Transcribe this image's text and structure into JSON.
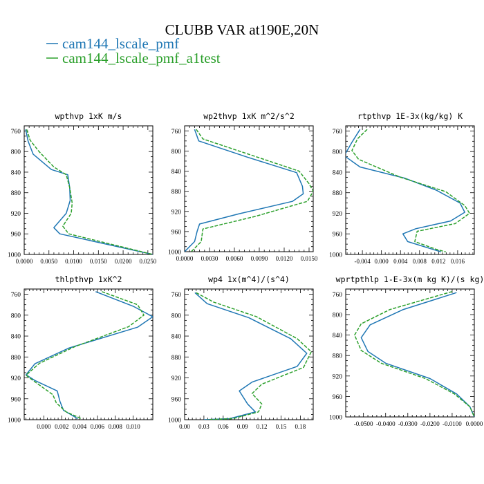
{
  "figure": {
    "title": "CLUBB VAR at190E,20N",
    "legend": [
      {
        "label": "cam144_lscale_pmf",
        "color": "#1f77b4",
        "dash": "solid"
      },
      {
        "label": "cam144_lscale_pmf_a1test",
        "color": "#2ca02c",
        "dash": "dashed"
      }
    ]
  },
  "chart_data": [
    {
      "type": "line",
      "title": "wpthvp  1xK m/s",
      "ylim": [
        1000,
        750
      ],
      "yticks": [
        760,
        800,
        840,
        880,
        920,
        960,
        1000
      ],
      "xlim": [
        0,
        0.026
      ],
      "xticks": [
        0,
        0.005,
        0.01,
        0.015,
        0.02,
        0.025
      ],
      "xtick_labels": [
        "0.0000",
        "0.0050",
        "0.0100",
        "0.0150",
        "0.0200",
        "0.0250"
      ],
      "series": [
        {
          "color": "#1f77b4",
          "dash": "solid",
          "points": [
            [
              0.0003,
              757
            ],
            [
              0.0008,
              780
            ],
            [
              0.0018,
              805
            ],
            [
              0.0055,
              835
            ],
            [
              0.0088,
              845
            ],
            [
              0.0092,
              870
            ],
            [
              0.0093,
              895
            ],
            [
              0.0085,
              920
            ],
            [
              0.006,
              948
            ],
            [
              0.0072,
              960
            ],
            [
              0.026,
              1000
            ]
          ]
        },
        {
          "color": "#2ca02c",
          "dash": "dashed",
          "points": [
            [
              0.0005,
              757
            ],
            [
              0.0012,
              778
            ],
            [
              0.003,
              800
            ],
            [
              0.006,
              830
            ],
            [
              0.0085,
              845
            ],
            [
              0.0092,
              870
            ],
            [
              0.0097,
              900
            ],
            [
              0.0095,
              920
            ],
            [
              0.0078,
              945
            ],
            [
              0.009,
              960
            ],
            [
              0.026,
              1000
            ]
          ]
        }
      ]
    },
    {
      "type": "line",
      "title": "wp2thvp  1xK m^2/s^2",
      "ylim": [
        1000,
        750
      ],
      "yticks": [
        760,
        800,
        840,
        880,
        920,
        960,
        1000
      ],
      "xlim": [
        0,
        0.0155
      ],
      "xticks": [
        0,
        0.003,
        0.006,
        0.009,
        0.012,
        0.015
      ],
      "xtick_labels": [
        "0.0000",
        "0.0030",
        "0.0060",
        "0.0090",
        "0.0120",
        "0.0150"
      ],
      "series": [
        {
          "color": "#1f77b4",
          "dash": "solid",
          "points": [
            [
              0.0012,
              757
            ],
            [
              0.0017,
              780
            ],
            [
              0.0075,
              812
            ],
            [
              0.0135,
              843
            ],
            [
              0.0142,
              870
            ],
            [
              0.0143,
              885
            ],
            [
              0.013,
              900
            ],
            [
              0.0065,
              925
            ],
            [
              0.0018,
              945
            ],
            [
              0.0015,
              960
            ],
            [
              0.0012,
              980
            ],
            [
              0.0,
              1000
            ]
          ]
        },
        {
          "color": "#2ca02c",
          "dash": "dashed",
          "points": [
            [
              0.0014,
              757
            ],
            [
              0.0022,
              776
            ],
            [
              0.008,
              808
            ],
            [
              0.0138,
              840
            ],
            [
              0.015,
              865
            ],
            [
              0.0155,
              880
            ],
            [
              0.0148,
              900
            ],
            [
              0.0085,
              930
            ],
            [
              0.0022,
              955
            ],
            [
              0.002,
              980
            ],
            [
              0.0008,
              1000
            ]
          ]
        }
      ]
    },
    {
      "type": "line",
      "title": "rtpthvp  1E-3x(kg/kg) K",
      "ylim": [
        1000,
        750
      ],
      "yticks": [
        760,
        800,
        840,
        880,
        920,
        960,
        1000
      ],
      "xlim": [
        -0.0075,
        0.0195
      ],
      "xticks": [
        -0.004,
        0.0,
        0.004,
        0.008,
        0.012,
        0.016
      ],
      "xtick_labels": [
        "-0.004",
        "0.000",
        "0.004",
        "0.008",
        "0.012",
        "0.016"
      ],
      "series": [
        {
          "color": "#1f77b4",
          "dash": "solid",
          "points": [
            [
              -0.0045,
              757
            ],
            [
              -0.0062,
              782
            ],
            [
              -0.0078,
              808
            ],
            [
              -0.0045,
              830
            ],
            [
              0.005,
              852
            ],
            [
              0.0115,
              875
            ],
            [
              0.0165,
              900
            ],
            [
              0.0175,
              918
            ],
            [
              0.0145,
              935
            ],
            [
              0.0072,
              950
            ],
            [
              0.0045,
              960
            ],
            [
              0.0055,
              975
            ],
            [
              0.0125,
              995
            ]
          ]
        },
        {
          "color": "#2ca02c",
          "dash": "dashed",
          "points": [
            [
              -0.003,
              757
            ],
            [
              -0.005,
              775
            ],
            [
              -0.0062,
              798
            ],
            [
              -0.0048,
              815
            ],
            [
              0.004,
              850
            ],
            [
              0.0135,
              878
            ],
            [
              0.0175,
              905
            ],
            [
              0.0185,
              920
            ],
            [
              0.0155,
              940
            ],
            [
              0.0075,
              955
            ],
            [
              0.007,
              975
            ],
            [
              0.0115,
              990
            ],
            [
              0.0135,
              995
            ]
          ]
        }
      ]
    },
    {
      "type": "line",
      "title": "thlpthvp  1xK^2",
      "ylim": [
        1000,
        750
      ],
      "yticks": [
        760,
        800,
        840,
        880,
        920,
        960,
        1000
      ],
      "xlim": [
        -0.0022,
        0.0122
      ],
      "xticks": [
        0,
        0.002,
        0.004,
        0.006,
        0.008,
        0.01
      ],
      "xtick_labels": [
        "0.000",
        "0.002",
        "0.004",
        "0.006",
        "0.008",
        "0.010"
      ],
      "series": [
        {
          "color": "#1f77b4",
          "dash": "solid",
          "points": [
            [
              0.0058,
              755
            ],
            [
              0.01,
              783
            ],
            [
              0.0122,
              803
            ],
            [
              0.0105,
              823
            ],
            [
              0.0028,
              863
            ],
            [
              -0.001,
              893
            ],
            [
              -0.002,
              914
            ],
            [
              -0.001,
              925
            ],
            [
              0.0015,
              945
            ],
            [
              0.0018,
              965
            ],
            [
              0.0022,
              982
            ],
            [
              0.0038,
              998
            ]
          ]
        },
        {
          "color": "#2ca02c",
          "dash": "dashed",
          "points": [
            [
              0.0065,
              755
            ],
            [
              0.0105,
              780
            ],
            [
              0.0112,
              800
            ],
            [
              0.0095,
              822
            ],
            [
              0.0035,
              860
            ],
            [
              -0.0005,
              892
            ],
            [
              -0.002,
              915
            ],
            [
              -0.0008,
              930
            ],
            [
              0.001,
              952
            ],
            [
              0.0014,
              968
            ],
            [
              0.0025,
              985
            ],
            [
              0.0042,
              998
            ]
          ]
        }
      ]
    },
    {
      "type": "line",
      "title": "wp4  1x(m^4)/(s^4)",
      "ylim": [
        1000,
        750
      ],
      "yticks": [
        760,
        800,
        840,
        880,
        920,
        960,
        1000
      ],
      "xlim": [
        0,
        0.2
      ],
      "xticks": [
        0,
        0.03,
        0.06,
        0.09,
        0.12,
        0.15,
        0.18
      ],
      "xtick_labels": [
        "0.00",
        "0.03",
        "0.06",
        "0.09",
        "0.12",
        "0.15",
        "0.18"
      ],
      "series": [
        {
          "color": "#1f77b4",
          "dash": "solid",
          "points": [
            [
              0.016,
              757
            ],
            [
              0.035,
              778
            ],
            [
              0.1,
              805
            ],
            [
              0.165,
              845
            ],
            [
              0.19,
              873
            ],
            [
              0.175,
              898
            ],
            [
              0.105,
              928
            ],
            [
              0.085,
              945
            ],
            [
              0.098,
              970
            ],
            [
              0.11,
              985
            ],
            [
              0.07,
              998
            ],
            [
              0.03,
              1000
            ]
          ]
        },
        {
          "color": "#2ca02c",
          "dash": "dashed",
          "points": [
            [
              0.018,
              757
            ],
            [
              0.045,
              775
            ],
            [
              0.112,
              803
            ],
            [
              0.175,
              845
            ],
            [
              0.197,
              870
            ],
            [
              0.185,
              900
            ],
            [
              0.12,
              932
            ],
            [
              0.105,
              950
            ],
            [
              0.12,
              970
            ],
            [
              0.115,
              985
            ],
            [
              0.075,
              998
            ],
            [
              0.035,
              1000
            ]
          ]
        }
      ]
    },
    {
      "type": "line",
      "title": "wprtpthlp  1-E-3x(m kg K)/(s kg)",
      "ylim": [
        1000,
        750
      ],
      "yticks": [
        760,
        800,
        840,
        880,
        920,
        960,
        1000
      ],
      "xlim": [
        -0.058,
        0.0
      ],
      "xticks": [
        -0.05,
        -0.04,
        -0.03,
        -0.02,
        -0.01,
        0.0
      ],
      "xtick_labels": [
        "-0.0500",
        "-0.0400",
        "-0.0300",
        "-0.0200",
        "-0.0100",
        "0.0000"
      ],
      "series": [
        {
          "color": "#1f77b4",
          "dash": "solid",
          "points": [
            [
              -0.008,
              757
            ],
            [
              -0.032,
              790
            ],
            [
              -0.047,
              820
            ],
            [
              -0.051,
              845
            ],
            [
              -0.048,
              872
            ],
            [
              -0.04,
              895
            ],
            [
              -0.02,
              925
            ],
            [
              -0.008,
              955
            ],
            [
              -0.002,
              980
            ],
            [
              0.0,
              1000
            ]
          ]
        },
        {
          "color": "#2ca02c",
          "dash": "dashed",
          "points": [
            [
              -0.01,
              755
            ],
            [
              -0.038,
              790
            ],
            [
              -0.051,
              818
            ],
            [
              -0.054,
              840
            ],
            [
              -0.051,
              870
            ],
            [
              -0.042,
              895
            ],
            [
              -0.022,
              925
            ],
            [
              -0.009,
              955
            ],
            [
              -0.002,
              980
            ],
            [
              0.0,
              1000
            ]
          ]
        }
      ]
    }
  ]
}
